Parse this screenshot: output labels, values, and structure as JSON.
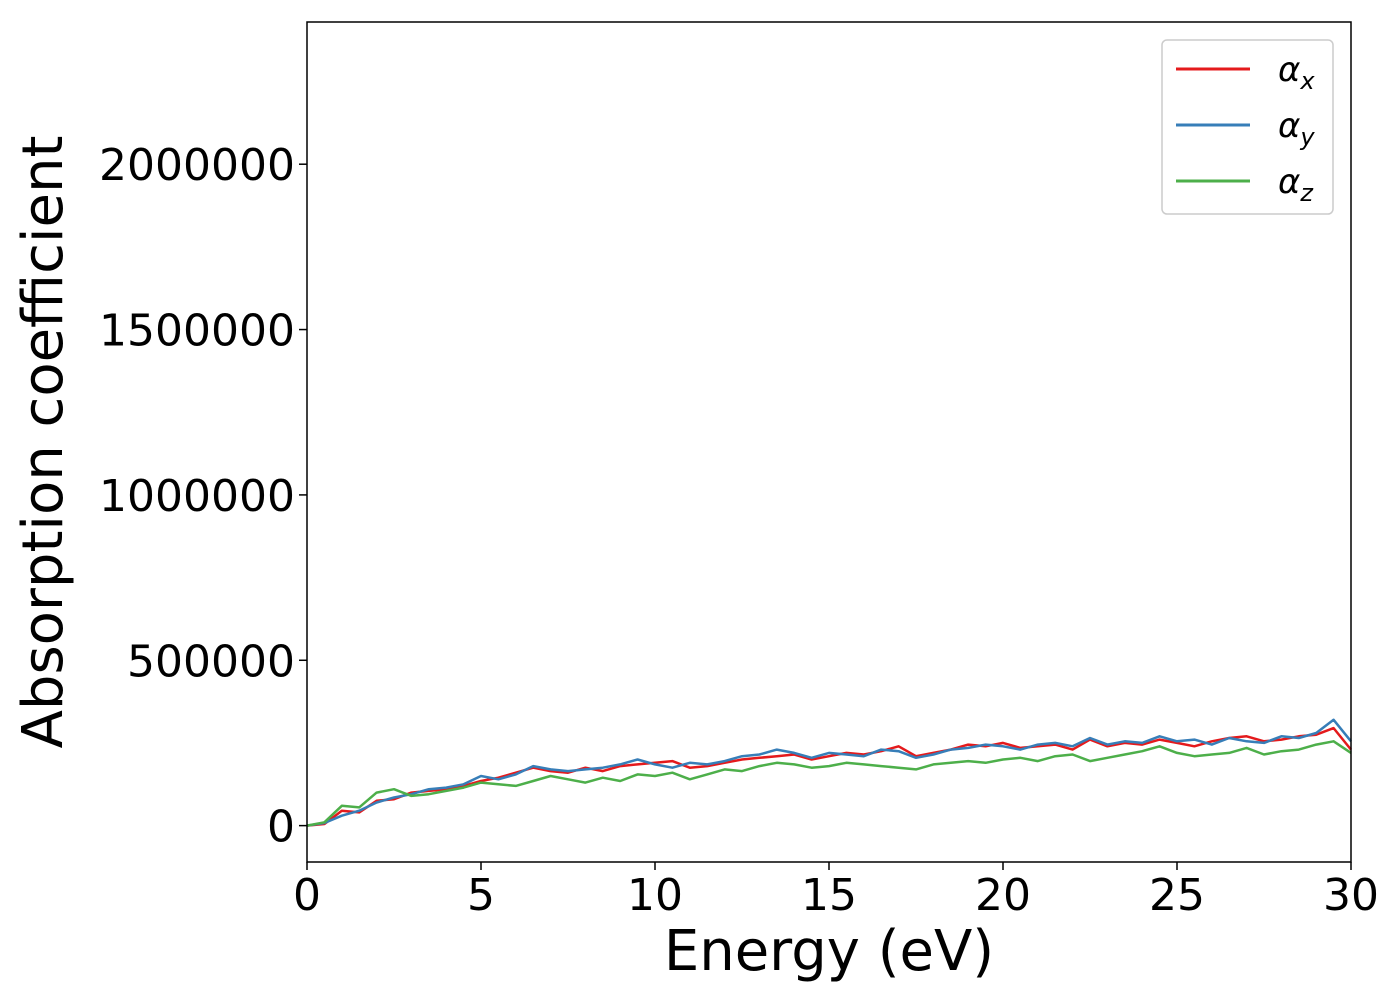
{
  "chart_data": {
    "type": "line",
    "xlabel": "Energy (eV)",
    "ylabel": "Absorption coefficient",
    "xlim": [
      0,
      30
    ],
    "ylim": [
      -110000,
      2430000
    ],
    "grid": false,
    "legend_position": "top-right",
    "x_ticks": [
      "0",
      "5",
      "10",
      "15",
      "20",
      "25",
      "30"
    ],
    "y_ticks": [
      "0",
      "500000",
      "1000000",
      "1500000",
      "2000000"
    ],
    "x": [
      0,
      0.5,
      1,
      1.5,
      2,
      2.5,
      3,
      3.5,
      4,
      4.5,
      5,
      5.5,
      6,
      6.5,
      7,
      7.5,
      8,
      8.5,
      9,
      9.5,
      10,
      10.5,
      11,
      11.5,
      12,
      12.5,
      13,
      13.5,
      14,
      14.5,
      15,
      15.5,
      16,
      16.5,
      17,
      17.5,
      18,
      18.5,
      19,
      19.5,
      20,
      20.5,
      21,
      21.5,
      22,
      22.5,
      23,
      23.5,
      24,
      24.5,
      25,
      25.5,
      26,
      26.5,
      27,
      27.5,
      28,
      28.5,
      29,
      29.5,
      30
    ],
    "series": [
      {
        "name": "α",
        "subscript": "x",
        "color": "#e41a1c",
        "values": [
          0,
          5000,
          45000,
          40000,
          75000,
          80000,
          100000,
          105000,
          110000,
          120000,
          135000,
          145000,
          160000,
          175000,
          165000,
          160000,
          175000,
          165000,
          180000,
          185000,
          190000,
          195000,
          175000,
          180000,
          190000,
          200000,
          205000,
          210000,
          215000,
          200000,
          210000,
          220000,
          215000,
          225000,
          240000,
          210000,
          220000,
          230000,
          245000,
          240000,
          250000,
          235000,
          240000,
          245000,
          230000,
          260000,
          240000,
          250000,
          245000,
          260000,
          250000,
          240000,
          255000,
          265000,
          270000,
          255000,
          260000,
          270000,
          275000,
          295000,
          230000
        ]
      },
      {
        "name": "α",
        "subscript": "y",
        "color": "#377eb8",
        "values": [
          0,
          8000,
          30000,
          45000,
          70000,
          85000,
          95000,
          110000,
          115000,
          125000,
          150000,
          140000,
          155000,
          180000,
          170000,
          165000,
          170000,
          175000,
          185000,
          200000,
          185000,
          175000,
          190000,
          185000,
          195000,
          210000,
          215000,
          230000,
          220000,
          205000,
          220000,
          215000,
          210000,
          230000,
          225000,
          205000,
          215000,
          230000,
          235000,
          245000,
          240000,
          230000,
          245000,
          250000,
          240000,
          265000,
          245000,
          255000,
          250000,
          270000,
          255000,
          260000,
          245000,
          265000,
          255000,
          250000,
          270000,
          265000,
          280000,
          320000,
          255000
        ]
      },
      {
        "name": "α",
        "subscript": "z",
        "color": "#4daf4a",
        "values": [
          0,
          10000,
          60000,
          55000,
          100000,
          110000,
          90000,
          95000,
          105000,
          115000,
          130000,
          125000,
          120000,
          135000,
          150000,
          140000,
          130000,
          145000,
          135000,
          155000,
          150000,
          160000,
          140000,
          155000,
          170000,
          165000,
          180000,
          190000,
          185000,
          175000,
          180000,
          190000,
          185000,
          180000,
          175000,
          170000,
          185000,
          190000,
          195000,
          190000,
          200000,
          205000,
          195000,
          210000,
          215000,
          195000,
          205000,
          215000,
          225000,
          240000,
          220000,
          210000,
          215000,
          220000,
          235000,
          215000,
          225000,
          230000,
          245000,
          255000,
          220000
        ]
      }
    ]
  }
}
